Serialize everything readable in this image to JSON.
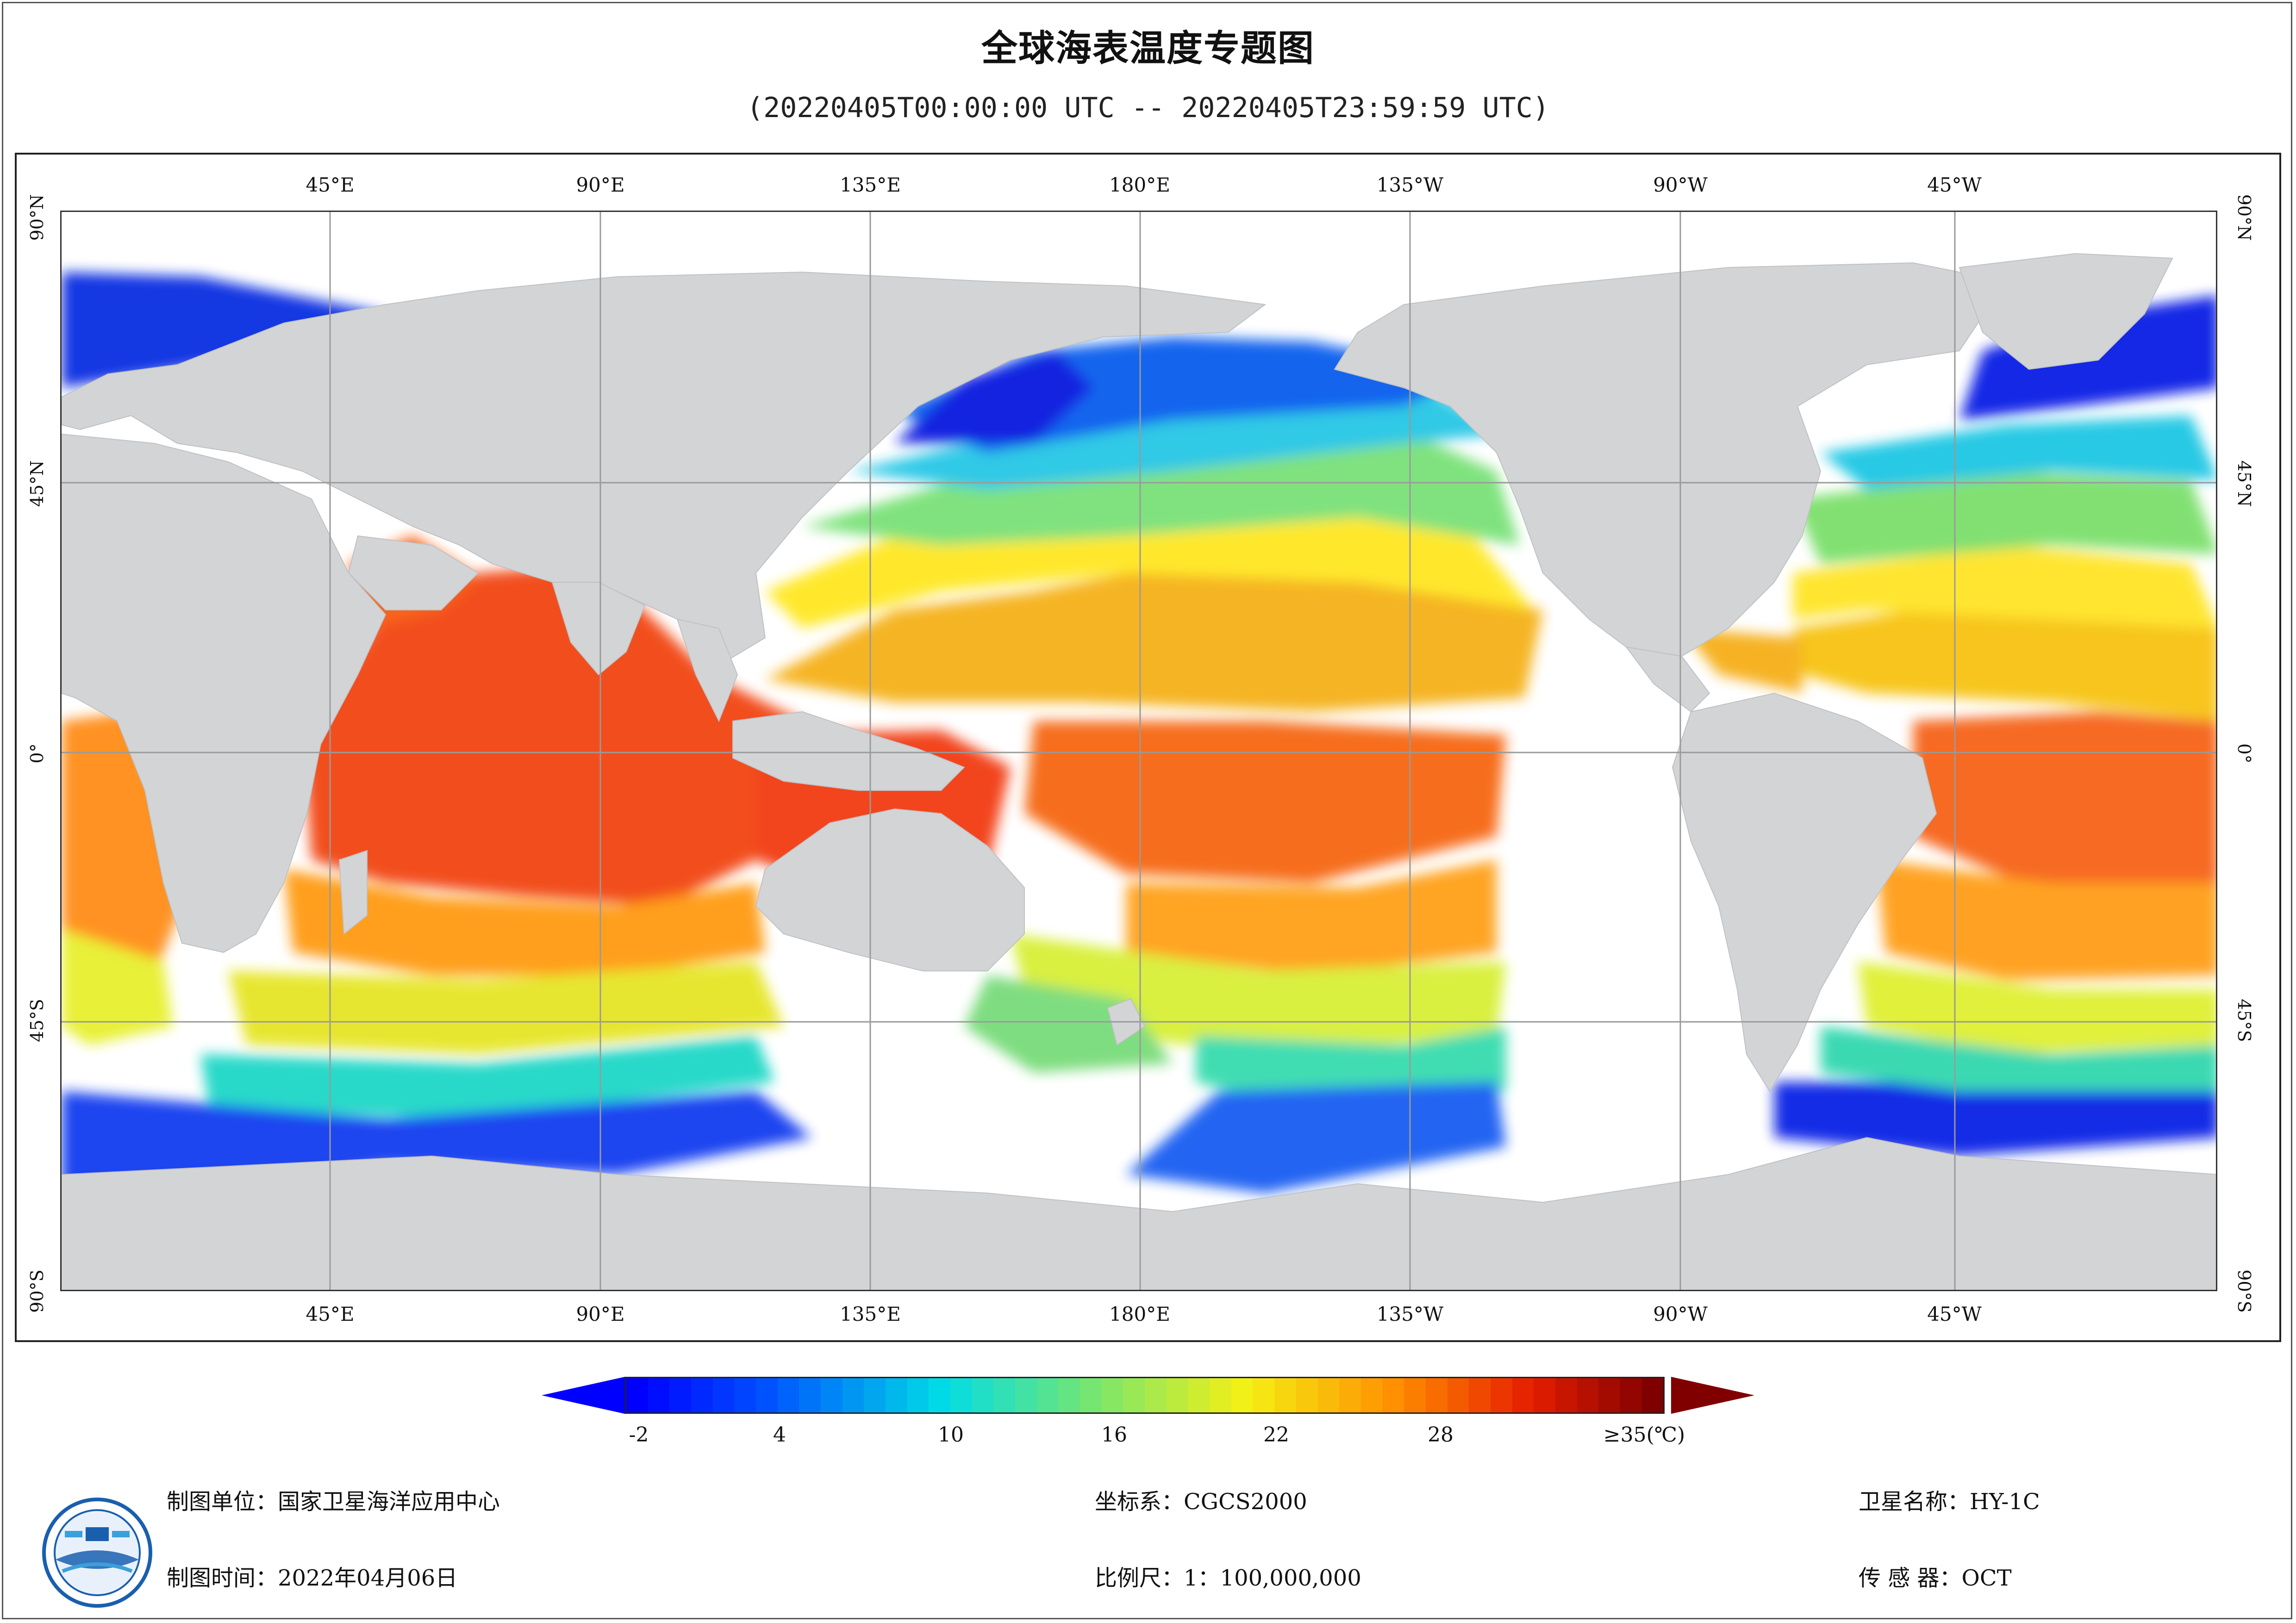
{
  "title": "全球海表温度专题图",
  "subtitle": "(20220405T00:00:00 UTC -- 20220405T23:59:59 UTC)",
  "map": {
    "top_longitude_labels": [
      "45°E",
      "90°E",
      "135°E",
      "180°E",
      "135°W",
      "90°W",
      "45°W"
    ],
    "bottom_longitude_labels": [
      "45°E",
      "90°E",
      "135°E",
      "180°E",
      "135°W",
      "90°W",
      "45°W"
    ],
    "latitude_labels": [
      "90°N",
      "45°N",
      "0°",
      "45°S",
      "90°S"
    ],
    "land_color": "#d3d4d6",
    "ocean_nodata_color": "#ffffff",
    "grid_color": "#9a9a9a"
  },
  "legend": {
    "tick_labels": [
      "-2",
      "4",
      "10",
      "16",
      "22",
      "28",
      "≥35(℃)"
    ],
    "min_arrow_color": "#0000ff",
    "max_arrow_color": "#800000"
  },
  "footer": {
    "unit": "制图单位：国家卫星海洋应用中心",
    "time": "制图时间：2022年04月06日",
    "coord": "坐标系：CGCS2000",
    "scale": "比例尺：1：100,000,000",
    "satellite": "卫星名称：HY-1C",
    "sensor": "传  感  器：OCT",
    "logo_icon": "nsoas-logo-icon"
  }
}
